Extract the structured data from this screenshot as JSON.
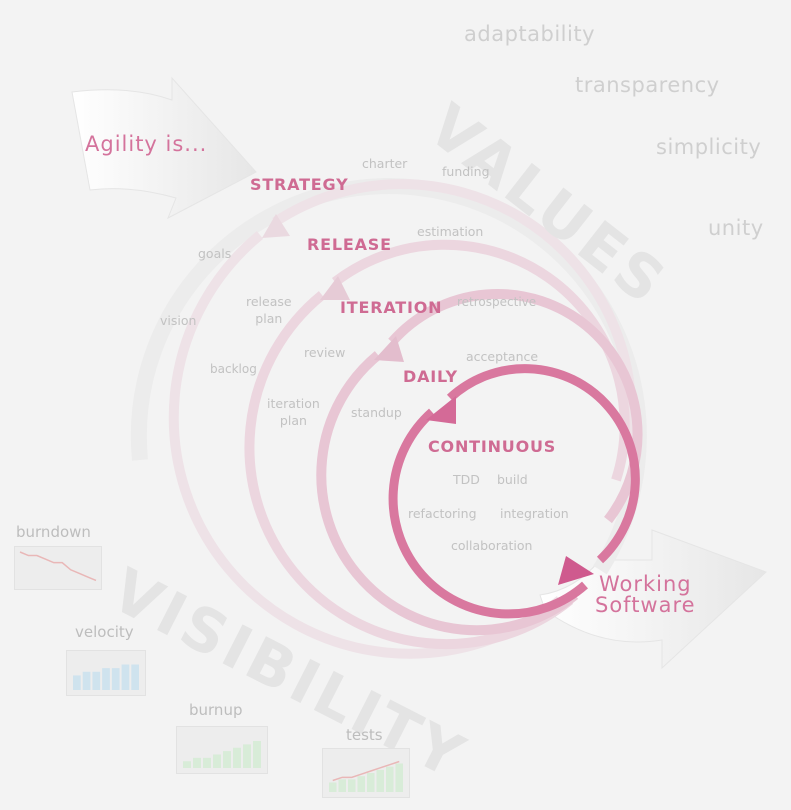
{
  "intro": "Agility is...",
  "outcome": {
    "line1": "Working",
    "line2": "Software"
  },
  "watermarks": {
    "values": "VALUES",
    "visibility": "VISIBILITY"
  },
  "values": [
    "adaptability",
    "transparency",
    "simplicity",
    "unity"
  ],
  "phases": {
    "strategy": "STRATEGY",
    "release": "RELEASE",
    "iteration": "ITERATION",
    "daily": "DAILY",
    "continuous": "CONTINUOUS"
  },
  "activities": {
    "charter": "charter",
    "funding": "funding",
    "estimation": "estimation",
    "goals": "goals",
    "vision": "vision",
    "release_plan": {
      "line1": "release",
      "line2": "plan"
    },
    "retrospective": "retrospective",
    "review": "review",
    "acceptance": "acceptance",
    "backlog": "backlog",
    "iteration_plan": {
      "line1": "iteration",
      "line2": "plan"
    },
    "standup": "standup",
    "tdd": "TDD",
    "build": "build",
    "refactoring": "refactoring",
    "integration": "integration",
    "collaboration": "collaboration"
  },
  "metrics": {
    "burndown": {
      "label": "burndown",
      "values": [
        9,
        8,
        8,
        7,
        6,
        6,
        4,
        3,
        2,
        1
      ]
    },
    "velocity": {
      "label": "velocity",
      "values": [
        4,
        5,
        5,
        6,
        6,
        7,
        7
      ]
    },
    "burnup": {
      "label": "burnup",
      "values": [
        2,
        3,
        3,
        4,
        5,
        6,
        7,
        8
      ]
    },
    "tests": {
      "label": "tests",
      "values": [
        3,
        4,
        4,
        5,
        6,
        7,
        8,
        9
      ]
    }
  },
  "colors": {
    "accent": "#cf6b93",
    "accent_dark": "#c9578a",
    "text_muted": "#c2c2c2",
    "background": "#f3f3f3",
    "spark_blue": "#cfe3ee",
    "spark_green": "#d8ecd8",
    "spark_red": "#e9b7b7"
  }
}
